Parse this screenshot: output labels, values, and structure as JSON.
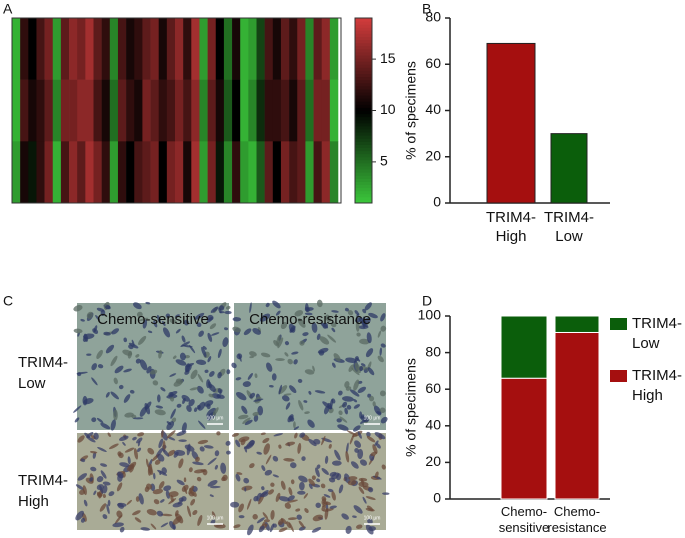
{
  "chart_data": [
    {
      "type": "heatmap",
      "label": "A",
      "values": [
        [
          2,
          12,
          10,
          13,
          15,
          3,
          14,
          16,
          15,
          17,
          14,
          12,
          4,
          13,
          11,
          12,
          14,
          15,
          11,
          14,
          16,
          12,
          17,
          3,
          15,
          10,
          5,
          11,
          2,
          3,
          7,
          13,
          11,
          14,
          12,
          15,
          4,
          14,
          16,
          3
        ],
        [
          2,
          13,
          11,
          12,
          14,
          4,
          15,
          15,
          16,
          16,
          13,
          11,
          5,
          14,
          12,
          11,
          15,
          14,
          12,
          13,
          15,
          13,
          16,
          4,
          14,
          11,
          6,
          10,
          2,
          4,
          8,
          12,
          12,
          13,
          11,
          14,
          5,
          15,
          15,
          2
        ],
        [
          3,
          11,
          9,
          12,
          15,
          2,
          13,
          16,
          14,
          17,
          15,
          12,
          3,
          12,
          10,
          13,
          14,
          15,
          10,
          15,
          16,
          11,
          17,
          3,
          15,
          9,
          4,
          12,
          3,
          2,
          6,
          14,
          10,
          15,
          13,
          14,
          3,
          13,
          16,
          4
        ]
      ],
      "colorscale": [
        "#3cc83c",
        "#000000",
        "#d23c3c"
      ],
      "zlim": [
        1,
        19
      ],
      "zticks": [
        5,
        10,
        15
      ]
    },
    {
      "type": "bar",
      "label": "B",
      "ylabel": "% of specimens",
      "categories": [
        "TRIM4-High",
        "TRIM4-Low"
      ],
      "values": [
        69,
        30
      ],
      "colors": [
        "#a50f0f",
        "#0b5e0b"
      ],
      "ylim": [
        0,
        80
      ],
      "yticks": [
        0,
        20,
        40,
        60,
        80
      ]
    },
    {
      "type": "stacked_bar",
      "label": "D",
      "ylabel": "% of specimens",
      "categories": [
        "Chemo-sensitive",
        "Chemo-resistance"
      ],
      "series": [
        {
          "name": "TRIM4-High",
          "color": "#a50f0f",
          "values": [
            66,
            91
          ]
        },
        {
          "name": "TRIM4-Low",
          "color": "#0b5e0b",
          "values": [
            34,
            9
          ]
        }
      ],
      "ylim": [
        0,
        100
      ],
      "yticks": [
        0,
        20,
        40,
        60,
        80,
        100
      ]
    }
  ],
  "panel_c": {
    "label": "C",
    "columns": [
      "Chemo-sensitive",
      "Chemo-resistance"
    ],
    "rows": [
      "TRIM4-Low",
      "TRIM4-High"
    ],
    "scale_bar_label": "100 μm"
  }
}
